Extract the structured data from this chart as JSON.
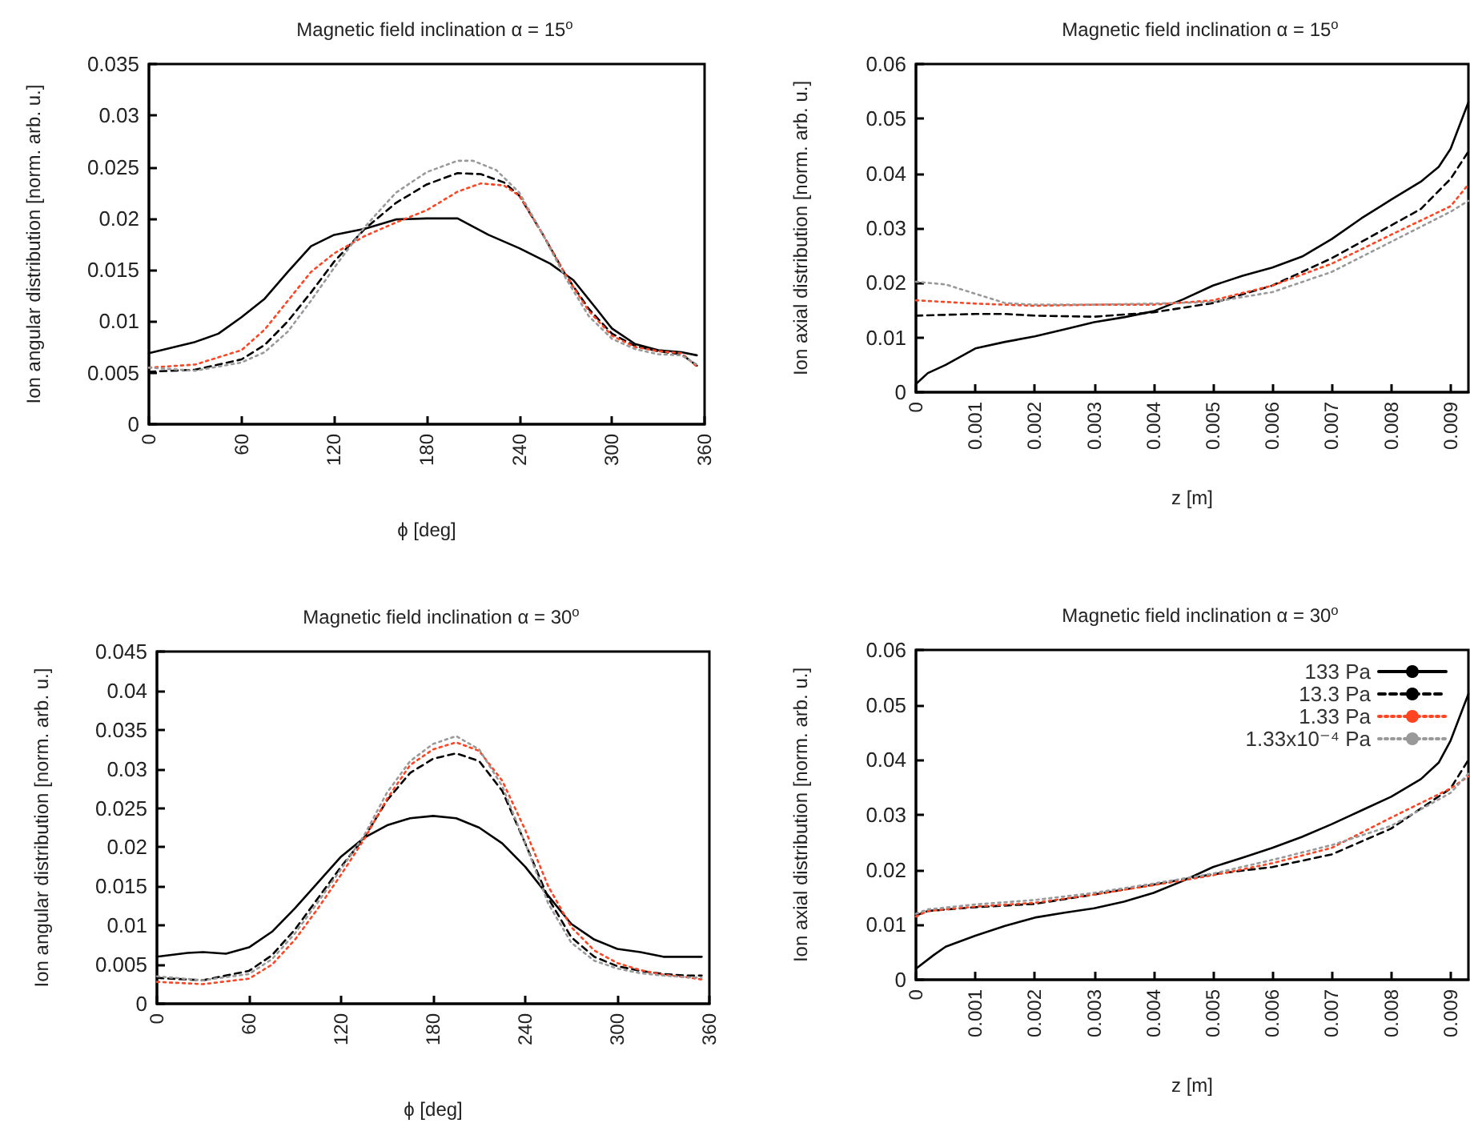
{
  "chart_data": [
    {
      "type": "line",
      "title": "Magnetic field inclination α = 15$^{o}$",
      "xlabel": "ϕ [deg]",
      "ylabel": "Ion angular distribution [norm. arb. u.]",
      "xlim": [
        0,
        360
      ],
      "xticks": [
        0,
        60,
        120,
        180,
        240,
        300,
        360
      ],
      "ylim": [
        0,
        0.035
      ],
      "yticks": [
        0,
        0.005,
        0.01,
        0.015,
        0.02,
        0.025,
        0.03,
        0.035
      ],
      "grid": false,
      "legend": false,
      "marker": "none",
      "series": [
        {
          "color": "#000000",
          "line_style": "solid",
          "x": [
            0,
            30,
            45,
            60,
            75,
            90,
            105,
            120,
            140,
            160,
            180,
            200,
            220,
            240,
            260,
            275,
            290,
            300,
            315,
            330,
            345,
            355
          ],
          "values": [
            0.0069,
            0.008,
            0.0088,
            0.0104,
            0.0122,
            0.0148,
            0.0173,
            0.0184,
            0.019,
            0.0199,
            0.02,
            0.02,
            0.0184,
            0.0171,
            0.0156,
            0.014,
            0.0112,
            0.0093,
            0.0078,
            0.0072,
            0.007,
            0.0067
          ]
        },
        {
          "color": "#000000",
          "line_style": "dashed",
          "x": [
            0,
            30,
            60,
            75,
            90,
            105,
            120,
            140,
            160,
            180,
            200,
            215,
            230,
            240,
            255,
            270,
            285,
            300,
            315,
            330,
            345,
            355
          ],
          "values": [
            0.0051,
            0.0053,
            0.0063,
            0.0077,
            0.01,
            0.0128,
            0.0158,
            0.019,
            0.0215,
            0.0233,
            0.0244,
            0.0243,
            0.0235,
            0.0222,
            0.0185,
            0.0145,
            0.0112,
            0.0088,
            0.0076,
            0.0071,
            0.0068,
            0.0057
          ]
        },
        {
          "color": "#ff4422",
          "line_style": "dotted",
          "x": [
            0,
            30,
            60,
            75,
            90,
            105,
            120,
            140,
            160,
            180,
            200,
            215,
            230,
            240,
            255,
            270,
            285,
            300,
            315,
            330,
            345,
            355
          ],
          "values": [
            0.0055,
            0.0058,
            0.0072,
            0.0092,
            0.012,
            0.0148,
            0.0166,
            0.0183,
            0.0196,
            0.0208,
            0.0226,
            0.0234,
            0.0232,
            0.0222,
            0.0185,
            0.0145,
            0.011,
            0.0086,
            0.0075,
            0.0071,
            0.0069,
            0.0056
          ]
        },
        {
          "color": "#999999",
          "line_style": "dotted",
          "x": [
            0,
            30,
            60,
            75,
            90,
            105,
            120,
            140,
            160,
            180,
            200,
            210,
            225,
            240,
            255,
            270,
            285,
            300,
            315,
            330,
            345,
            355
          ],
          "values": [
            0.0055,
            0.0052,
            0.006,
            0.007,
            0.009,
            0.012,
            0.0152,
            0.0192,
            0.0225,
            0.0245,
            0.0256,
            0.0256,
            0.0247,
            0.0225,
            0.0185,
            0.0142,
            0.0105,
            0.0083,
            0.0073,
            0.0068,
            0.0067,
            0.0058
          ]
        }
      ]
    },
    {
      "type": "line",
      "title": "Magnetic field inclination α = 15$^{o}$",
      "xlabel": "z [m]",
      "ylabel": "Ion axial distribution [norm. arb. u.]",
      "xlim": [
        0,
        0.0093
      ],
      "xticks": [
        0,
        0.001,
        0.002,
        0.003,
        0.004,
        0.005,
        0.006,
        0.007,
        0.008,
        0.009
      ],
      "ylim": [
        0,
        0.06
      ],
      "yticks": [
        0,
        0.01,
        0.02,
        0.03,
        0.04,
        0.05,
        0.06
      ],
      "grid": false,
      "legend": false,
      "marker": "none",
      "series": [
        {
          "color": "#000000",
          "line_style": "solid",
          "x": [
            0,
            0.0002,
            0.0005,
            0.001,
            0.0015,
            0.002,
            0.0025,
            0.003,
            0.0035,
            0.004,
            0.0045,
            0.005,
            0.0055,
            0.006,
            0.0065,
            0.007,
            0.0075,
            0.008,
            0.0085,
            0.0088,
            0.009,
            0.0093
          ],
          "values": [
            0.0015,
            0.0035,
            0.005,
            0.008,
            0.0092,
            0.0102,
            0.0115,
            0.0128,
            0.0137,
            0.0148,
            0.017,
            0.0195,
            0.0213,
            0.0228,
            0.0248,
            0.028,
            0.0318,
            0.0352,
            0.0385,
            0.0412,
            0.0445,
            0.053
          ]
        },
        {
          "color": "#000000",
          "line_style": "dashed",
          "x": [
            0,
            0.001,
            0.0015,
            0.002,
            0.003,
            0.004,
            0.005,
            0.006,
            0.007,
            0.008,
            0.0085,
            0.009,
            0.0093
          ],
          "values": [
            0.014,
            0.0143,
            0.0143,
            0.014,
            0.0138,
            0.0146,
            0.0163,
            0.0195,
            0.0245,
            0.0305,
            0.0335,
            0.039,
            0.044
          ]
        },
        {
          "color": "#ff4422",
          "line_style": "dotted",
          "x": [
            0,
            0.001,
            0.002,
            0.003,
            0.004,
            0.005,
            0.006,
            0.007,
            0.008,
            0.009,
            0.0093
          ],
          "values": [
            0.0168,
            0.0162,
            0.0158,
            0.016,
            0.016,
            0.0168,
            0.0195,
            0.0235,
            0.0288,
            0.034,
            0.038
          ]
        },
        {
          "color": "#999999",
          "line_style": "dotted",
          "x": [
            0,
            0.0005,
            0.001,
            0.0015,
            0.002,
            0.003,
            0.004,
            0.005,
            0.006,
            0.007,
            0.008,
            0.009,
            0.0093
          ],
          "values": [
            0.0202,
            0.0197,
            0.018,
            0.0163,
            0.016,
            0.016,
            0.0162,
            0.0165,
            0.0183,
            0.022,
            0.0275,
            0.033,
            0.035
          ]
        }
      ]
    },
    {
      "type": "line",
      "title": "Magnetic field inclination α = 30$^{o}$",
      "xlabel": "ϕ [deg]",
      "ylabel": "Ion angular distribution [norm. arb. u.]",
      "xlim": [
        0,
        360
      ],
      "xticks": [
        0,
        60,
        120,
        180,
        240,
        300,
        360
      ],
      "ylim": [
        0,
        0.045
      ],
      "yticks": [
        0,
        0.005,
        0.01,
        0.015,
        0.02,
        0.025,
        0.03,
        0.035,
        0.04,
        0.045
      ],
      "grid": false,
      "legend": false,
      "marker": "none",
      "series": [
        {
          "color": "#000000",
          "line_style": "solid",
          "x": [
            0,
            20,
            30,
            45,
            60,
            75,
            90,
            105,
            120,
            135,
            150,
            165,
            180,
            195,
            210,
            225,
            240,
            255,
            270,
            285,
            300,
            315,
            330,
            345,
            355
          ],
          "values": [
            0.006,
            0.0065,
            0.0066,
            0.0064,
            0.0072,
            0.0092,
            0.0122,
            0.0155,
            0.0188,
            0.0212,
            0.0228,
            0.0237,
            0.024,
            0.0237,
            0.0225,
            0.0205,
            0.0175,
            0.0138,
            0.0102,
            0.0082,
            0.007,
            0.0066,
            0.006,
            0.006,
            0.006
          ]
        },
        {
          "color": "#000000",
          "line_style": "dashed",
          "x": [
            0,
            30,
            60,
            75,
            90,
            105,
            120,
            135,
            150,
            165,
            180,
            195,
            210,
            225,
            240,
            255,
            270,
            285,
            300,
            315,
            330,
            345,
            355
          ],
          "values": [
            0.0033,
            0.003,
            0.0042,
            0.0062,
            0.0095,
            0.0135,
            0.0175,
            0.0212,
            0.026,
            0.0295,
            0.0313,
            0.032,
            0.031,
            0.0272,
            0.0205,
            0.0135,
            0.0085,
            0.006,
            0.0048,
            0.0042,
            0.0038,
            0.0036,
            0.0036
          ]
        },
        {
          "color": "#ff4422",
          "line_style": "dotted",
          "x": [
            0,
            30,
            60,
            75,
            90,
            105,
            120,
            135,
            150,
            165,
            180,
            195,
            210,
            225,
            240,
            255,
            270,
            285,
            300,
            315,
            330,
            345,
            355
          ],
          "values": [
            0.0028,
            0.0025,
            0.0032,
            0.005,
            0.0082,
            0.0122,
            0.0165,
            0.021,
            0.0262,
            0.0305,
            0.0325,
            0.0334,
            0.0323,
            0.0285,
            0.0222,
            0.015,
            0.0098,
            0.0068,
            0.0052,
            0.0043,
            0.0037,
            0.0034,
            0.0031
          ]
        },
        {
          "color": "#999999",
          "line_style": "dotted",
          "x": [
            0,
            30,
            60,
            75,
            90,
            105,
            120,
            135,
            150,
            165,
            180,
            195,
            210,
            225,
            240,
            255,
            270,
            285,
            300,
            315,
            330,
            345,
            355
          ],
          "values": [
            0.0035,
            0.003,
            0.0038,
            0.0057,
            0.009,
            0.013,
            0.0172,
            0.0215,
            0.027,
            0.031,
            0.0332,
            0.0342,
            0.0325,
            0.0278,
            0.0205,
            0.0128,
            0.0078,
            0.0055,
            0.0045,
            0.0039,
            0.0036,
            0.0034,
            0.0033
          ]
        }
      ]
    },
    {
      "type": "line",
      "title": "Magnetic field inclination α = 30$^{o}$",
      "xlabel": "z [m]",
      "ylabel": "Ion axial distribution [norm. arb. u.]",
      "xlim": [
        0,
        0.0093
      ],
      "xticks": [
        0,
        0.001,
        0.002,
        0.003,
        0.004,
        0.005,
        0.006,
        0.007,
        0.008,
        0.009
      ],
      "ylim": [
        0,
        0.06
      ],
      "yticks": [
        0,
        0.01,
        0.02,
        0.03,
        0.04,
        0.05,
        0.06
      ],
      "grid": false,
      "legend": "top right",
      "marker": "none",
      "series": [
        {
          "name": "133 Pa",
          "color": "#000000",
          "line_style": "solid",
          "x": [
            0,
            0.0003,
            0.0005,
            0.001,
            0.0015,
            0.002,
            0.0025,
            0.003,
            0.0035,
            0.004,
            0.0045,
            0.005,
            0.0055,
            0.006,
            0.0065,
            0.007,
            0.0075,
            0.008,
            0.0085,
            0.0088,
            0.009,
            0.0093
          ],
          "values": [
            0.002,
            0.0045,
            0.006,
            0.008,
            0.0098,
            0.0113,
            0.0122,
            0.013,
            0.0142,
            0.0158,
            0.018,
            0.0205,
            0.0222,
            0.024,
            0.026,
            0.0283,
            0.0308,
            0.0333,
            0.0365,
            0.0395,
            0.0435,
            0.052
          ]
        },
        {
          "name": "13.3 Pa",
          "color": "#000000",
          "line_style": "dashed",
          "x": [
            0,
            0.0002,
            0.001,
            0.002,
            0.003,
            0.004,
            0.005,
            0.006,
            0.007,
            0.008,
            0.009,
            0.0093
          ],
          "values": [
            0.0117,
            0.0125,
            0.0132,
            0.0138,
            0.0155,
            0.0173,
            0.0192,
            0.0205,
            0.0228,
            0.0275,
            0.0348,
            0.04
          ]
        },
        {
          "name": "1.33 Pa",
          "color": "#ff4422",
          "line_style": "dotted",
          "x": [
            0,
            0.0002,
            0.001,
            0.002,
            0.003,
            0.004,
            0.005,
            0.006,
            0.007,
            0.008,
            0.009,
            0.0093
          ],
          "values": [
            0.0115,
            0.0125,
            0.0133,
            0.014,
            0.0155,
            0.0172,
            0.019,
            0.0212,
            0.024,
            0.0295,
            0.0348,
            0.037
          ]
        },
        {
          "name": "1.33x10⁻⁴ Pa",
          "color": "#999999",
          "line_style": "dotted",
          "x": [
            0,
            0.0002,
            0.001,
            0.002,
            0.003,
            0.004,
            0.005,
            0.006,
            0.007,
            0.008,
            0.009,
            0.0093
          ],
          "values": [
            0.012,
            0.0128,
            0.0137,
            0.0145,
            0.0158,
            0.0175,
            0.0193,
            0.0218,
            0.0245,
            0.028,
            0.034,
            0.0375
          ]
        }
      ]
    }
  ]
}
